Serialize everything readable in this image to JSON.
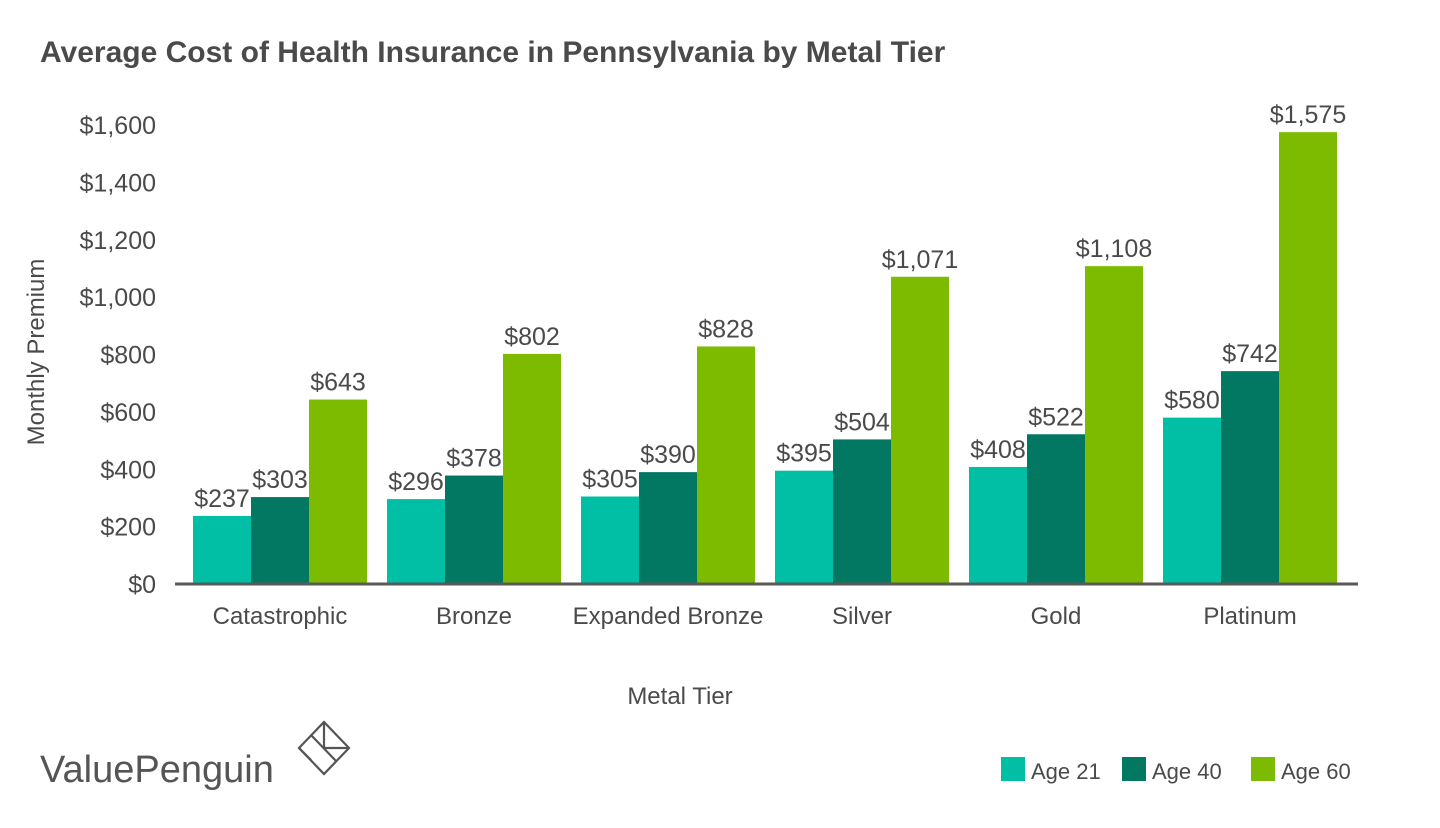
{
  "chart_data": {
    "type": "bar",
    "title": "Average Cost of Health Insurance in Pennsylvania by Metal Tier",
    "xlabel": "Metal Tier",
    "ylabel": "Monthly Premium",
    "ylim": [
      0,
      1600
    ],
    "yticks": [
      0,
      200,
      400,
      600,
      800,
      1000,
      1200,
      1400,
      1600
    ],
    "ytick_labels": [
      "$0",
      "$200",
      "$400",
      "$600",
      "$800",
      "$1,000",
      "$1,200",
      "$1,400",
      "$1,600"
    ],
    "categories": [
      "Catastrophic",
      "Bronze",
      "Expanded Bronze",
      "Silver",
      "Gold",
      "Platinum"
    ],
    "series": [
      {
        "name": "Age 21",
        "color": "#00bfa5",
        "values": [
          237,
          296,
          305,
          395,
          408,
          580
        ],
        "labels": [
          "$237",
          "$296",
          "$305",
          "$395",
          "$408",
          "$580"
        ]
      },
      {
        "name": "Age 40",
        "color": "#027863",
        "values": [
          303,
          378,
          390,
          504,
          522,
          742
        ],
        "labels": [
          "$303",
          "$378",
          "$390",
          "$504",
          "$522",
          "$742"
        ]
      },
      {
        "name": "Age 60",
        "color": "#7cbb00",
        "values": [
          643,
          802,
          828,
          1071,
          1108,
          1575
        ],
        "labels": [
          "$643",
          "$802",
          "$828",
          "$1,071",
          "$1,108",
          "$1,575"
        ]
      }
    ],
    "grid": false,
    "legend_position": "bottom-right"
  },
  "brand": {
    "name": "ValuePenguin",
    "icon": "valuepenguin-logo-icon"
  },
  "colors": {
    "axis": "#595959",
    "text": "#4a4a4a"
  }
}
